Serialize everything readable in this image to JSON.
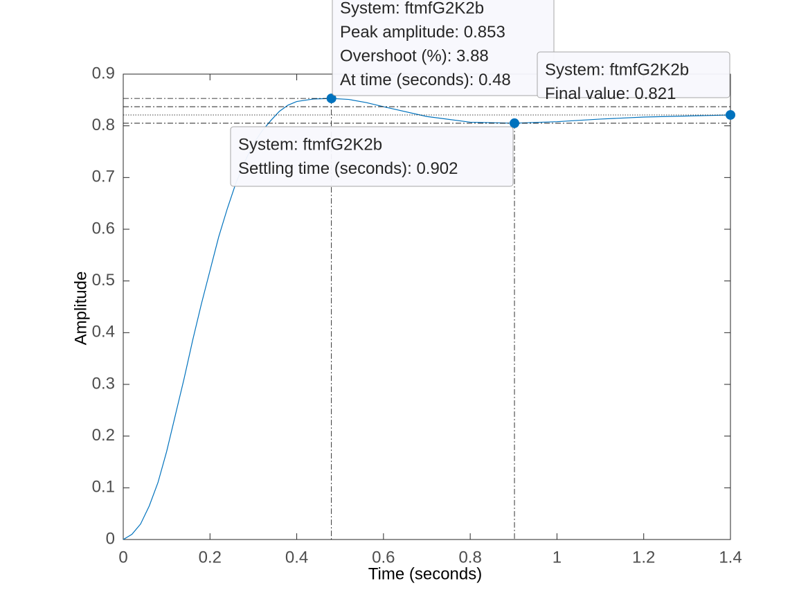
{
  "chart_data": {
    "type": "line",
    "xlabel": "Time (seconds)",
    "ylabel": "Amplitude",
    "x": [
      0,
      0.02,
      0.04,
      0.06,
      0.08,
      0.1,
      0.12,
      0.14,
      0.16,
      0.18,
      0.2,
      0.22,
      0.24,
      0.26,
      0.28,
      0.3,
      0.32,
      0.34,
      0.36,
      0.38,
      0.4,
      0.44,
      0.48,
      0.52,
      0.56,
      0.6,
      0.7,
      0.8,
      0.9,
      1.0,
      1.1,
      1.2,
      1.3,
      1.4
    ],
    "series": [
      {
        "name": "ftmfG2K2b",
        "color": "#0072bd",
        "values": [
          0,
          0.01,
          0.03,
          0.065,
          0.11,
          0.17,
          0.24,
          0.31,
          0.385,
          0.455,
          0.52,
          0.585,
          0.64,
          0.69,
          0.73,
          0.765,
          0.79,
          0.81,
          0.828,
          0.84,
          0.847,
          0.852,
          0.853,
          0.851,
          0.845,
          0.837,
          0.818,
          0.807,
          0.805,
          0.808,
          0.813,
          0.817,
          0.819,
          0.821
        ]
      }
    ],
    "xlim": [
      0,
      1.4
    ],
    "ylim": [
      0,
      0.9
    ],
    "xticks": [
      0,
      0.2,
      0.4,
      0.6,
      0.8,
      1,
      1.2,
      1.4
    ],
    "yticks": [
      0,
      0.1,
      0.2,
      0.3,
      0.4,
      0.5,
      0.6,
      0.7,
      0.8,
      0.9
    ],
    "settling_bounds": [
      0.805,
      0.837
    ],
    "annotations": [
      {
        "lines": [
          "System: ftmfG2K2b",
          "Peak amplitude: 0.853",
          "Overshoot (%): 3.88",
          "At time (seconds): 0.48"
        ],
        "x": 0.48,
        "y": 0.853
      },
      {
        "lines": [
          "System: ftmfG2K2b",
          "Settling time (seconds): 0.902"
        ],
        "x": 0.902,
        "y": 0.805
      },
      {
        "lines": [
          "System: ftmfG2K2b",
          "Final value: 0.821"
        ],
        "x": 1.4,
        "y": 0.821
      }
    ]
  }
}
